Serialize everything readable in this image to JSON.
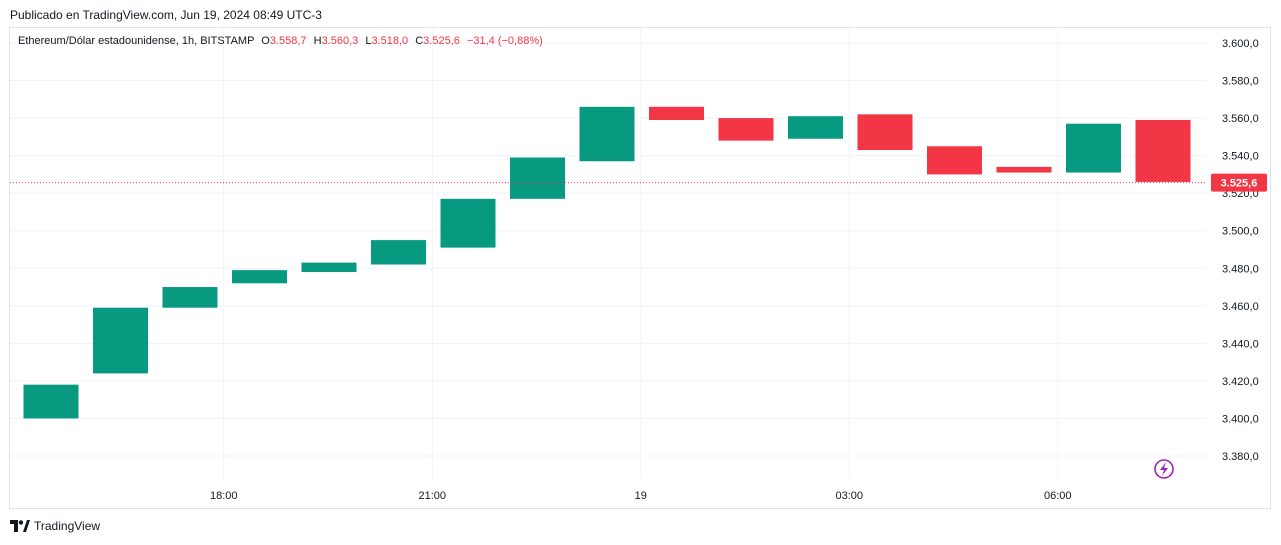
{
  "header": {
    "published": "Publicado en TradingView.com, Jun 19, 2024 08:49 UTC-3"
  },
  "legend": {
    "symbol": "Ethereum/Dólar estadounidense, 1h, BITSTAMP",
    "o_label": "O",
    "o_value": "3.558,7",
    "h_label": "H",
    "h_value": "3.560,3",
    "l_label": "L",
    "l_value": "3.518,0",
    "c_label": "C",
    "c_value": "3.525,6",
    "change": "−31,4 (−0,88%)"
  },
  "footer": {
    "brand": "TradingView"
  },
  "colors": {
    "up": "#089981",
    "down": "#f23645",
    "grid": "#f0f3fa",
    "text": "#131722"
  },
  "icons": {
    "alert": "lightning-icon",
    "logo": "tradingview-logo-icon"
  },
  "chart_data": {
    "type": "candlestick",
    "ylim": [
      3370,
      3605
    ],
    "y_ticks": [
      "3.600,0",
      "3.580,0",
      "3.560,0",
      "3.540,0",
      "3.520,0",
      "3.500,0",
      "3.480,0",
      "3.460,0",
      "3.440,0",
      "3.420,0",
      "3.400,0",
      "3.380,0"
    ],
    "y_tick_values": [
      3600,
      3580,
      3560,
      3540,
      3520,
      3500,
      3480,
      3460,
      3440,
      3420,
      3400,
      3380
    ],
    "x_ticks": [
      "18:00",
      "21:00",
      "19",
      "03:00",
      "06:00"
    ],
    "last_price": 3525.6,
    "last_price_label": "3.525,6",
    "candles": [
      {
        "o": 3400,
        "c": 3418
      },
      {
        "o": 3424,
        "c": 3459
      },
      {
        "o": 3459,
        "c": 3470
      },
      {
        "o": 3472,
        "c": 3479
      },
      {
        "o": 3478,
        "c": 3483
      },
      {
        "o": 3482,
        "c": 3495
      },
      {
        "o": 3491,
        "c": 3517
      },
      {
        "o": 3517,
        "c": 3539
      },
      {
        "o": 3537,
        "c": 3566
      },
      {
        "o": 3566,
        "c": 3559
      },
      {
        "o": 3560,
        "c": 3548
      },
      {
        "o": 3549,
        "c": 3561
      },
      {
        "o": 3562,
        "c": 3543
      },
      {
        "o": 3545,
        "c": 3530
      },
      {
        "o": 3534,
        "c": 3531
      },
      {
        "o": 3531,
        "c": 3557
      },
      {
        "o": 3559,
        "c": 3526
      }
    ]
  }
}
